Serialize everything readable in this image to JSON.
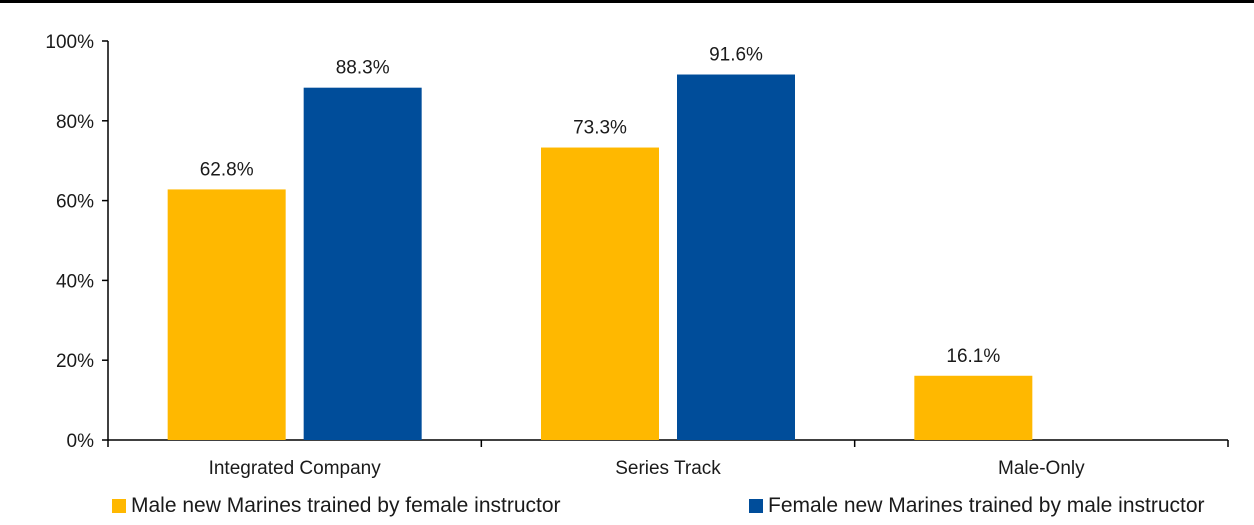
{
  "chart_data": {
    "type": "bar",
    "title": "",
    "xlabel": "",
    "ylabel": "",
    "categories": [
      "Integrated Company",
      "Series Track",
      "Male-Only"
    ],
    "series": [
      {
        "name": "Male new Marines trained by female instructor",
        "color": "#FFB800",
        "values": [
          62.8,
          73.3,
          16.1
        ],
        "labels": [
          "62.8%",
          "73.3%",
          "16.1%"
        ]
      },
      {
        "name": "Female new Marines trained by male instructor",
        "color": "#004D9A",
        "values": [
          88.3,
          91.6,
          null
        ],
        "labels": [
          "88.3%",
          "91.6%",
          null
        ]
      }
    ],
    "ylim": [
      0,
      100
    ],
    "yticks": [
      0,
      20,
      40,
      60,
      80,
      100
    ],
    "ytick_labels": [
      "0%",
      "20%",
      "40%",
      "60%",
      "80%",
      "100%"
    ],
    "grid": false,
    "legend_position": "bottom"
  }
}
